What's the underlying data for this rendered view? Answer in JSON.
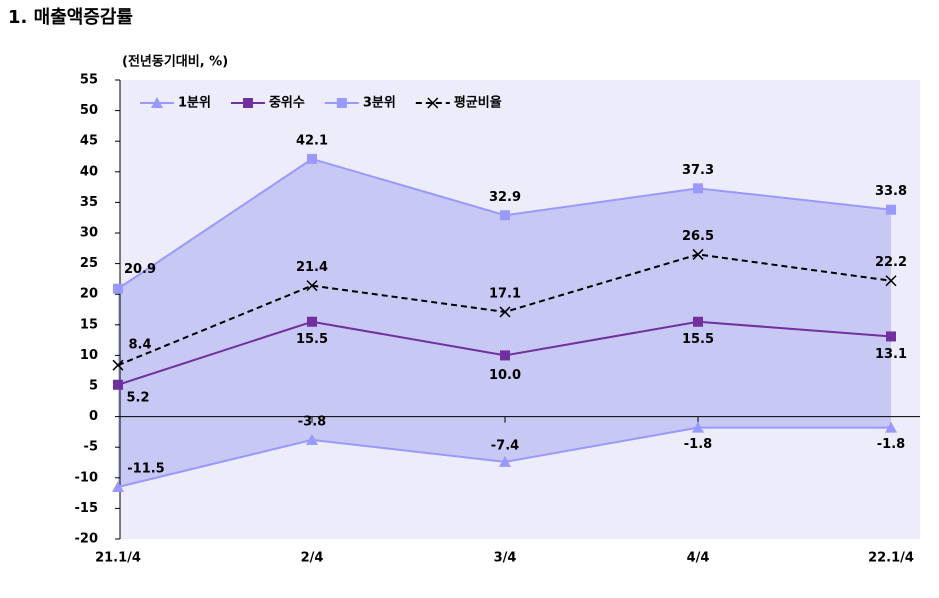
{
  "chart_data": {
    "type": "line",
    "title": "1. 매출액증감률",
    "y_label": "(전년동기대비, %)",
    "categories": [
      "21.1/4",
      "2/4",
      "3/4",
      "4/4",
      "22.1/4"
    ],
    "series": [
      {
        "name": "1분위",
        "color": "#9999ff",
        "marker": "triangle",
        "values": [
          -11.5,
          -3.8,
          -7.4,
          -1.8,
          -1.8
        ],
        "value_labels": [
          "-11.5",
          "-3.8",
          "-7.4",
          "-1.8",
          "-1.8"
        ]
      },
      {
        "name": "중위수",
        "color": "#70309f",
        "marker": "square",
        "values": [
          5.2,
          15.5,
          10.0,
          15.5,
          13.1
        ],
        "value_labels": [
          "5.2",
          "15.5",
          "10.0",
          "15.5",
          "13.1"
        ]
      },
      {
        "name": "3분위",
        "color": "#9999ff",
        "marker": "square",
        "values": [
          20.9,
          42.1,
          32.9,
          37.3,
          33.8
        ],
        "value_labels": [
          "20.9",
          "42.1",
          "32.9",
          "37.3",
          "33.8"
        ]
      },
      {
        "name": "평균비율",
        "color": "#000000",
        "marker": "x",
        "dashed": true,
        "values": [
          8.4,
          21.4,
          17.1,
          26.5,
          22.2
        ],
        "value_labels": [
          "8.4",
          "21.4",
          "17.1",
          "26.5",
          "22.2"
        ]
      }
    ],
    "band_color": "#c8c8f4",
    "ylim": [
      -20,
      55
    ],
    "yticks": [
      -20,
      -15,
      -10,
      -5,
      0,
      5,
      10,
      15,
      20,
      25,
      30,
      35,
      40,
      45,
      50,
      55
    ]
  }
}
